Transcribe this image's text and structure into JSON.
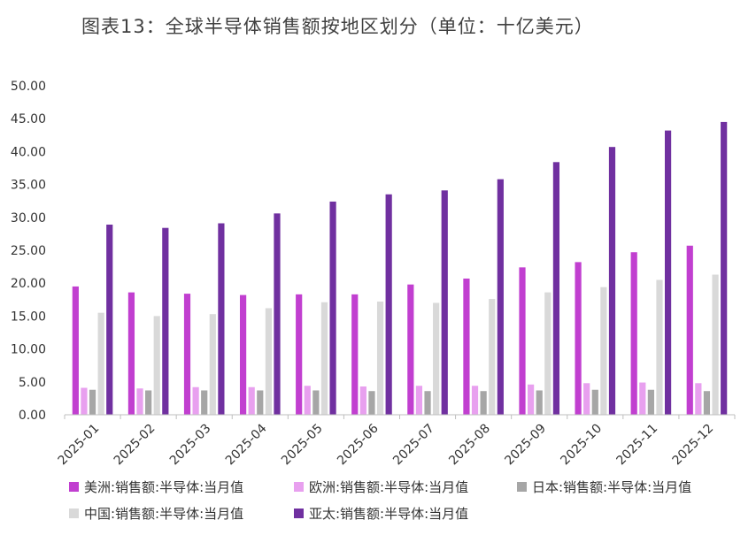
{
  "title": "图表13：全球半导体销售额按地区划分（单位：十亿美元）",
  "chart_data": {
    "type": "bar",
    "title": "图表13：全球半导体销售额按地区划分（单位：十亿美元）",
    "xlabel": "",
    "ylabel": "",
    "ylim": [
      0,
      50
    ],
    "yticks": [
      "0.00",
      "5.00",
      "10.00",
      "15.00",
      "20.00",
      "25.00",
      "30.00",
      "35.00",
      "40.00",
      "45.00",
      "50.00"
    ],
    "grid": false,
    "legend_position": "bottom",
    "categories": [
      "2025-01",
      "2025-02",
      "2025-03",
      "2025-04",
      "2025-05",
      "2025-06",
      "2025-07",
      "2025-08",
      "2025-09",
      "2025-10",
      "2025-11",
      "2025-12"
    ],
    "series": [
      {
        "name": "美洲:销售额:半导体:当月值",
        "color": "#c13fd0",
        "values": [
          19.5,
          18.6,
          18.4,
          18.2,
          18.3,
          18.3,
          19.8,
          20.7,
          22.4,
          23.2,
          24.7,
          25.7
        ]
      },
      {
        "name": "欧洲:销售额:半导体:当月值",
        "color": "#e8a0ef",
        "values": [
          4.1,
          4.0,
          4.2,
          4.2,
          4.4,
          4.3,
          4.4,
          4.4,
          4.6,
          4.8,
          4.9,
          4.8
        ]
      },
      {
        "name": "日本:销售额:半导体:当月值",
        "color": "#a6a6a6",
        "values": [
          3.8,
          3.7,
          3.7,
          3.7,
          3.7,
          3.6,
          3.6,
          3.6,
          3.7,
          3.8,
          3.8,
          3.6
        ]
      },
      {
        "name": "中国:销售额:半导体:当月值",
        "color": "#d9d9d9",
        "values": [
          15.5,
          15.0,
          15.3,
          16.2,
          17.1,
          17.2,
          17.0,
          17.6,
          18.6,
          19.4,
          20.5,
          21.3
        ]
      },
      {
        "name": "亚太:销售额:半导体:当月值",
        "color": "#7030a0",
        "values": [
          28.9,
          28.4,
          29.1,
          30.6,
          32.4,
          33.5,
          34.1,
          35.8,
          38.4,
          40.7,
          43.2,
          44.5
        ]
      }
    ]
  }
}
